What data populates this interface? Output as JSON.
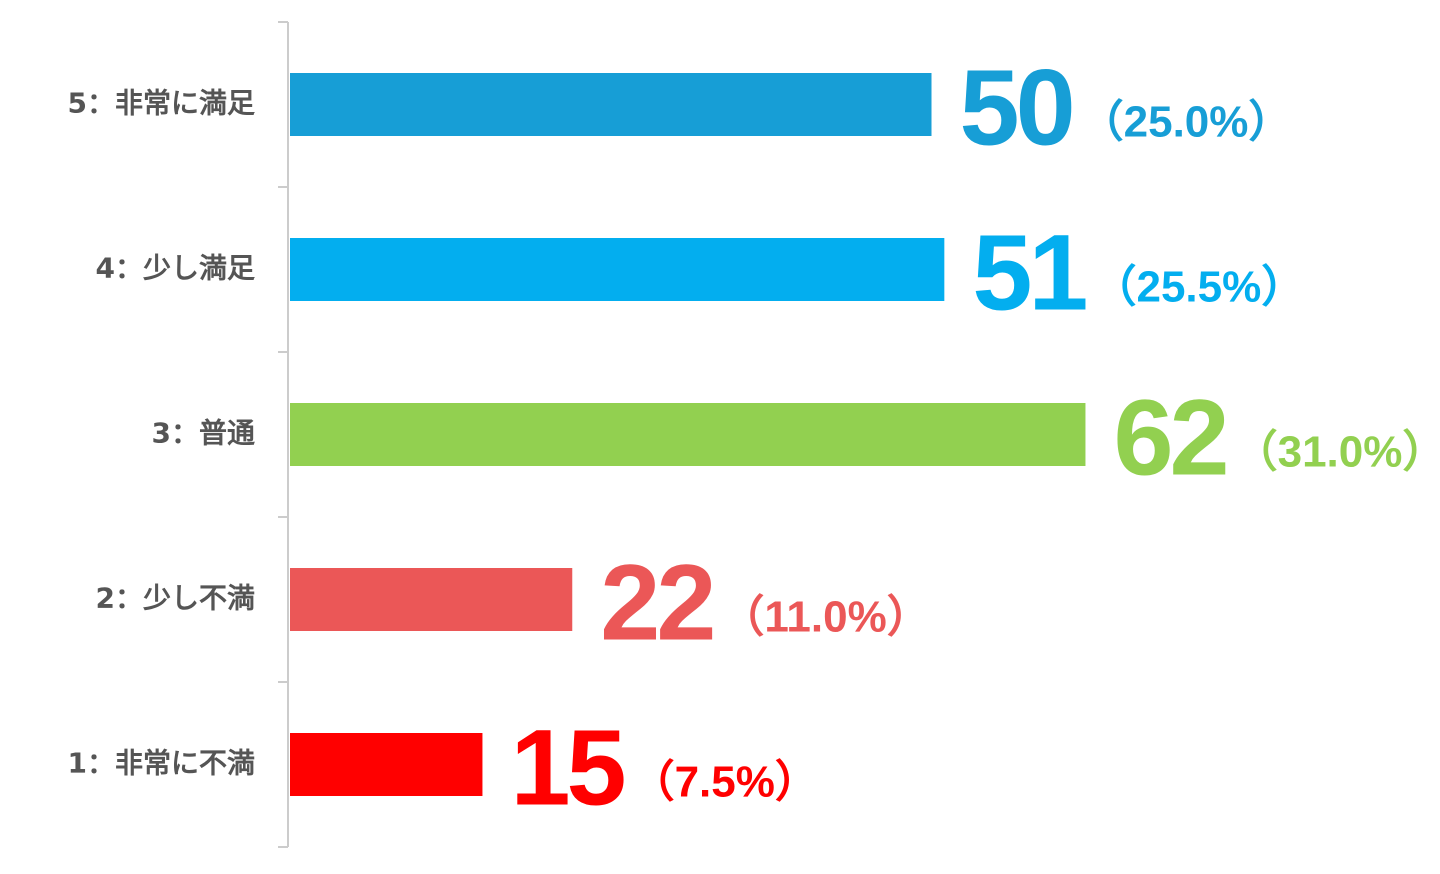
{
  "chart_data": {
    "type": "bar",
    "orientation": "horizontal",
    "categories": [
      "5：非常に満足",
      "4：少し満足",
      "3：普通",
      "2：少し不満",
      "1：非常に不満"
    ],
    "values": [
      50,
      51,
      62,
      22,
      15
    ],
    "percent_labels": [
      "（25.0%）",
      "（25.5%）",
      "（31.0%）",
      "（11.0%）",
      "（7.5%）"
    ],
    "colors": [
      "#179ed6",
      "#03aeef",
      "#92d050",
      "#eb5757",
      "#ff0000"
    ],
    "xlim": [
      0,
      70
    ]
  }
}
